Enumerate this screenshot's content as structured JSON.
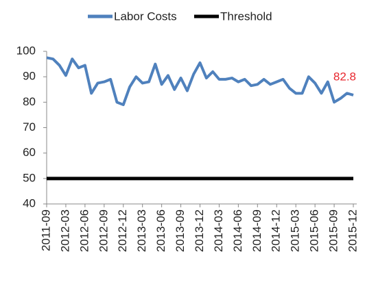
{
  "chart_data": {
    "type": "line",
    "categories": [
      "2011-09",
      null,
      null,
      "2012-03",
      null,
      null,
      "2012-06",
      null,
      null,
      "2012-09",
      null,
      null,
      "2012-12",
      null,
      null,
      "2013-03",
      null,
      null,
      "2013-06",
      null,
      null,
      "2013-09",
      null,
      null,
      "2013-12",
      null,
      null,
      "2014-03",
      null,
      null,
      "2014-06",
      null,
      null,
      "2014-09",
      null,
      null,
      "2014-12",
      null,
      null,
      "2015-03",
      null,
      null,
      "2015-06",
      null,
      null,
      "2015-09",
      null,
      null,
      "2015-12"
    ],
    "series": [
      {
        "name": "Labor Costs",
        "color": "#4f81bd",
        "values": [
          97.5,
          97,
          94.5,
          90.5,
          97,
          93.5,
          94.5,
          83.5,
          87.5,
          88,
          89,
          80,
          79,
          86,
          90,
          87.5,
          88,
          95,
          87,
          90.5,
          85,
          89.5,
          84.5,
          91,
          95.5,
          89.5,
          92,
          89,
          89,
          89.5,
          88,
          89,
          86.5,
          87,
          89,
          87,
          88,
          89,
          85.5,
          83.5,
          83.5,
          90,
          87.5,
          83.5,
          88,
          80,
          81.5,
          83.5,
          82.8
        ]
      },
      {
        "name": "Threshold",
        "color": "#000000",
        "values": [
          50,
          50,
          50,
          50,
          50,
          50,
          50,
          50,
          50,
          50,
          50,
          50,
          50,
          50,
          50,
          50,
          50,
          50,
          50,
          50,
          50,
          50,
          50,
          50,
          50,
          50,
          50,
          50,
          50,
          50,
          50,
          50,
          50,
          50,
          50,
          50,
          50,
          50,
          50,
          50,
          50,
          50,
          50,
          50,
          50,
          50,
          50,
          50,
          50
        ]
      }
    ],
    "data_label_color": "#e8262d",
    "ylim": [
      40,
      100
    ],
    "yticks": [
      40,
      50,
      60,
      70,
      80,
      90,
      100
    ],
    "legend": "top"
  }
}
